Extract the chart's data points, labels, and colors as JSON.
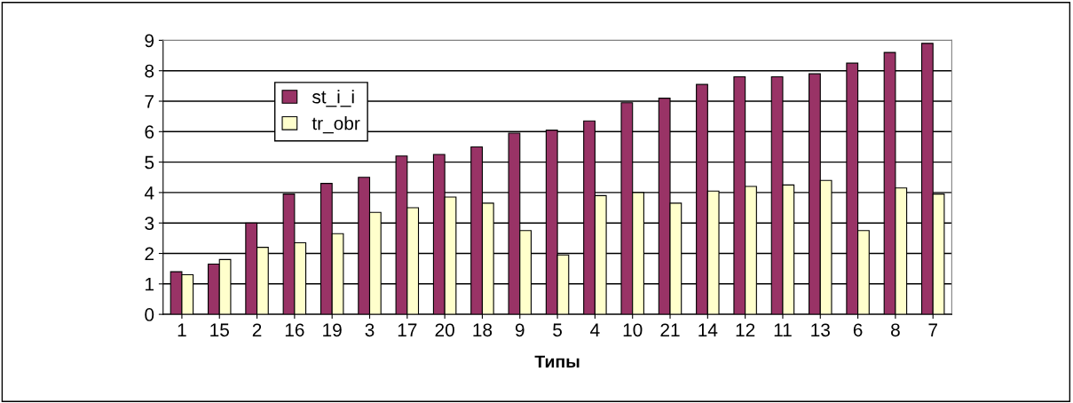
{
  "chart_data": {
    "type": "bar",
    "xlabel": "Типы",
    "categories": [
      "1",
      "15",
      "2",
      "16",
      "19",
      "3",
      "17",
      "20",
      "18",
      "9",
      "5",
      "4",
      "10",
      "21",
      "14",
      "12",
      "11",
      "13",
      "6",
      "8",
      "7"
    ],
    "series": [
      {
        "name": "st_i_i",
        "color": "#993366",
        "values": [
          1.4,
          1.65,
          3.0,
          3.95,
          4.3,
          4.5,
          5.2,
          5.25,
          5.5,
          5.95,
          6.05,
          6.35,
          6.95,
          7.1,
          7.55,
          7.8,
          7.8,
          7.9,
          8.25,
          8.6,
          8.9
        ]
      },
      {
        "name": "tr_obr",
        "color": "#ffffcc",
        "values": [
          1.3,
          1.8,
          2.2,
          2.35,
          2.65,
          3.35,
          3.5,
          3.85,
          3.65,
          2.75,
          1.95,
          3.9,
          4.0,
          3.65,
          4.05,
          4.2,
          4.25,
          4.4,
          2.75,
          4.15,
          3.95
        ]
      }
    ],
    "ylim": [
      0,
      9
    ],
    "yticks": [
      0,
      1,
      2,
      3,
      4,
      5,
      6,
      7,
      8,
      9
    ],
    "grid": "y",
    "legend": "top left"
  }
}
